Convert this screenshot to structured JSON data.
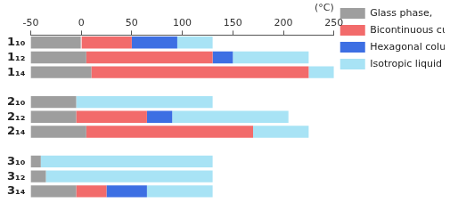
{
  "chart_data": {
    "type": "bar",
    "orientation": "horizontal",
    "xlabel": "(°C)",
    "categories": [
      "1₁₀",
      "1₁₂",
      "1₁₄",
      null,
      "2₁₀",
      "2₁₂",
      "2₁₄",
      null,
      "3₁₀",
      "3₁₂",
      "3₁₄"
    ],
    "series": [
      {
        "name": "Glass phase,",
        "color": "#9e9e9e",
        "values": [
          [
            -50,
            0
          ],
          [
            -50,
            5
          ],
          [
            -50,
            10
          ],
          null,
          [
            -50,
            -5
          ],
          [
            -50,
            -5
          ],
          [
            -50,
            5
          ],
          null,
          [
            -50,
            -40
          ],
          [
            -50,
            -35
          ],
          [
            -50,
            -5
          ]
        ]
      },
      {
        "name": "Bicontinuous cubic phase,",
        "color": "#f26b6b",
        "values": [
          [
            0,
            50
          ],
          [
            5,
            130
          ],
          [
            10,
            225
          ],
          null,
          null,
          [
            -5,
            65
          ],
          [
            5,
            170
          ],
          null,
          null,
          null,
          [
            -5,
            25
          ]
        ]
      },
      {
        "name": "Hexagonal columnar phase,",
        "color": "#3d6fe3",
        "values": [
          [
            50,
            95
          ],
          [
            130,
            150
          ],
          null,
          null,
          null,
          [
            65,
            90
          ],
          null,
          null,
          null,
          null,
          [
            25,
            65
          ]
        ]
      },
      {
        "name": "Isotropic liquid phase",
        "color": "#a8e3f5",
        "values": [
          [
            95,
            130
          ],
          [
            150,
            225
          ],
          [
            225,
            250
          ],
          null,
          [
            -5,
            130
          ],
          [
            90,
            205
          ],
          [
            170,
            225
          ],
          null,
          [
            -40,
            130
          ],
          [
            -35,
            130
          ],
          [
            65,
            130
          ]
        ]
      }
    ],
    "xlim": [
      -50,
      250
    ],
    "xticks": [
      -50,
      0,
      50,
      100,
      150,
      200,
      250
    ],
    "grid": false,
    "legend": "right"
  }
}
